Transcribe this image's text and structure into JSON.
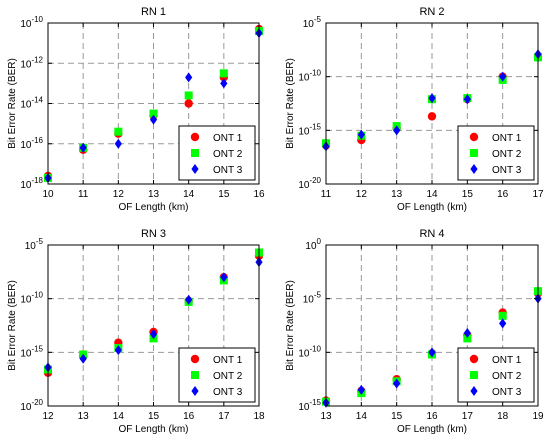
{
  "chart_data": [
    {
      "type": "scatter",
      "title": "RN 1",
      "xlabel": "OF Length (km)",
      "ylabel": "Bit Error Rate (BER)",
      "yscale": "log",
      "xlim": [
        10,
        16
      ],
      "ylim_exp": [
        -18,
        -10
      ],
      "xticks": [
        10,
        11,
        12,
        13,
        14,
        15,
        16
      ],
      "yticks": [
        {
          "base": "10",
          "exp": "-10",
          "e": -10
        },
        {
          "base": "10",
          "exp": "-12",
          "e": -12
        },
        {
          "base": "10",
          "exp": "-14",
          "e": -14
        },
        {
          "base": "10",
          "exp": "-16",
          "e": -16
        },
        {
          "base": "10",
          "exp": "-18",
          "e": -18
        }
      ],
      "grid_x": [
        11,
        12,
        13,
        14,
        15
      ],
      "grid_y_exp": [
        -12,
        -14,
        -16
      ],
      "legend_position": "lower-right",
      "series": [
        {
          "name": "ONT 1",
          "marker": "circle",
          "color": "#ff0000",
          "x": [
            10,
            11,
            12,
            13,
            14,
            15,
            16
          ],
          "y_exp": [
            -17.6,
            -16.3,
            -15.5,
            -14.6,
            -14.0,
            -12.7,
            -10.3
          ]
        },
        {
          "name": "ONT 2",
          "marker": "square",
          "color": "#00ff00",
          "x": [
            10,
            11,
            12,
            13,
            14,
            15,
            16
          ],
          "y_exp": [
            -17.7,
            -16.2,
            -15.4,
            -14.5,
            -13.6,
            -12.5,
            -10.4
          ]
        },
        {
          "name": "ONT 3",
          "marker": "diamond",
          "color": "#0000ff",
          "x": [
            10,
            11,
            12,
            13,
            14,
            15,
            16
          ],
          "y_exp": [
            -17.7,
            -16.2,
            -16.0,
            -14.8,
            -12.7,
            -13.0,
            -10.5
          ]
        }
      ]
    },
    {
      "type": "scatter",
      "title": "RN 2",
      "xlabel": "OF Length (km)",
      "ylabel": "Bit Error Rate (BER)",
      "yscale": "log",
      "xlim": [
        11,
        17
      ],
      "ylim_exp": [
        -20,
        -5
      ],
      "xticks": [
        11,
        12,
        13,
        14,
        15,
        16,
        17
      ],
      "yticks": [
        {
          "base": "10",
          "exp": "-5",
          "e": -5
        },
        {
          "base": "10",
          "exp": "-10",
          "e": -10
        },
        {
          "base": "10",
          "exp": "-15",
          "e": -15
        },
        {
          "base": "10",
          "exp": "-20",
          "e": -20
        }
      ],
      "grid_x": [
        12,
        13,
        14,
        15,
        16
      ],
      "grid_y_exp": [
        -10,
        -15
      ],
      "legend_position": "lower-right",
      "series": [
        {
          "name": "ONT 1",
          "marker": "circle",
          "color": "#ff0000",
          "x": [
            11,
            12,
            13,
            14,
            15,
            16,
            17
          ],
          "y_exp": [
            -16.4,
            -15.9,
            -14.8,
            -13.7,
            -12.1,
            -10.0,
            -8.1
          ]
        },
        {
          "name": "ONT 2",
          "marker": "square",
          "color": "#00ff00",
          "x": [
            11,
            12,
            13,
            14,
            15,
            16,
            17
          ],
          "y_exp": [
            -16.2,
            -15.5,
            -14.6,
            -12.1,
            -12.0,
            -10.3,
            -8.2
          ]
        },
        {
          "name": "ONT 3",
          "marker": "diamond",
          "color": "#0000ff",
          "x": [
            11,
            12,
            13,
            14,
            15,
            16,
            17
          ],
          "y_exp": [
            -16.5,
            -15.4,
            -15.0,
            -12.0,
            -12.1,
            -10.0,
            -7.9
          ]
        }
      ]
    },
    {
      "type": "scatter",
      "title": "RN 3",
      "xlabel": "OF Length (km)",
      "ylabel": "Bit Error Rate (BER)",
      "yscale": "log",
      "xlim": [
        12,
        18
      ],
      "ylim_exp": [
        -20,
        -5
      ],
      "xticks": [
        12,
        13,
        14,
        15,
        16,
        17,
        18
      ],
      "yticks": [
        {
          "base": "10",
          "exp": "-5",
          "e": -5
        },
        {
          "base": "10",
          "exp": "-10",
          "e": -10
        },
        {
          "base": "10",
          "exp": "-15",
          "e": -15
        },
        {
          "base": "10",
          "exp": "-20",
          "e": -20
        }
      ],
      "grid_x": [
        13,
        14,
        15,
        16,
        17
      ],
      "grid_y_exp": [
        -10,
        -15
      ],
      "legend_position": "lower-right",
      "series": [
        {
          "name": "ONT 1",
          "marker": "circle",
          "color": "#ff0000",
          "x": [
            12,
            13,
            14,
            15,
            16,
            17,
            18
          ],
          "y_exp": [
            -16.9,
            -15.4,
            -14.1,
            -13.1,
            -10.2,
            -8.0,
            -6.0
          ]
        },
        {
          "name": "ONT 2",
          "marker": "square",
          "color": "#00ff00",
          "x": [
            12,
            13,
            14,
            15,
            16,
            17,
            18
          ],
          "y_exp": [
            -16.6,
            -15.2,
            -14.6,
            -13.7,
            -10.3,
            -8.3,
            -5.7
          ]
        },
        {
          "name": "ONT 3",
          "marker": "diamond",
          "color": "#0000ff",
          "x": [
            12,
            13,
            14,
            15,
            16,
            17,
            18
          ],
          "y_exp": [
            -16.4,
            -15.6,
            -14.8,
            -13.3,
            -10.1,
            -8.0,
            -6.6
          ]
        }
      ]
    },
    {
      "type": "scatter",
      "title": "RN 4",
      "xlabel": "OF Length (km)",
      "ylabel": "Bit Error Rate (BER)",
      "yscale": "log",
      "xlim": [
        13,
        19
      ],
      "ylim_exp": [
        -15,
        0
      ],
      "xticks": [
        13,
        14,
        15,
        16,
        17,
        18,
        19
      ],
      "yticks": [
        {
          "base": "10",
          "exp": "0",
          "e": 0
        },
        {
          "base": "10",
          "exp": "-5",
          "e": -5
        },
        {
          "base": "10",
          "exp": "-10",
          "e": -10
        },
        {
          "base": "10",
          "exp": "-15",
          "e": -15
        }
      ],
      "grid_x": [
        14,
        15,
        16,
        17,
        18
      ],
      "grid_y_exp": [
        -5,
        -10
      ],
      "legend_position": "lower-right",
      "series": [
        {
          "name": "ONT 1",
          "marker": "circle",
          "color": "#ff0000",
          "x": [
            13,
            14,
            15,
            16,
            17,
            18,
            19
          ],
          "y_exp": [
            -14.5,
            -13.6,
            -12.5,
            -10.1,
            -8.4,
            -6.3,
            -4.5
          ]
        },
        {
          "name": "ONT 2",
          "marker": "square",
          "color": "#00ff00",
          "x": [
            13,
            14,
            15,
            16,
            17,
            18,
            19
          ],
          "y_exp": [
            -14.6,
            -13.8,
            -12.7,
            -10.2,
            -8.7,
            -6.6,
            -4.3
          ]
        },
        {
          "name": "ONT 3",
          "marker": "diamond",
          "color": "#0000ff",
          "x": [
            13,
            14,
            15,
            16,
            17,
            18,
            19
          ],
          "y_exp": [
            -14.7,
            -13.5,
            -12.9,
            -10.0,
            -8.2,
            -7.3,
            -5.0
          ]
        }
      ]
    }
  ]
}
